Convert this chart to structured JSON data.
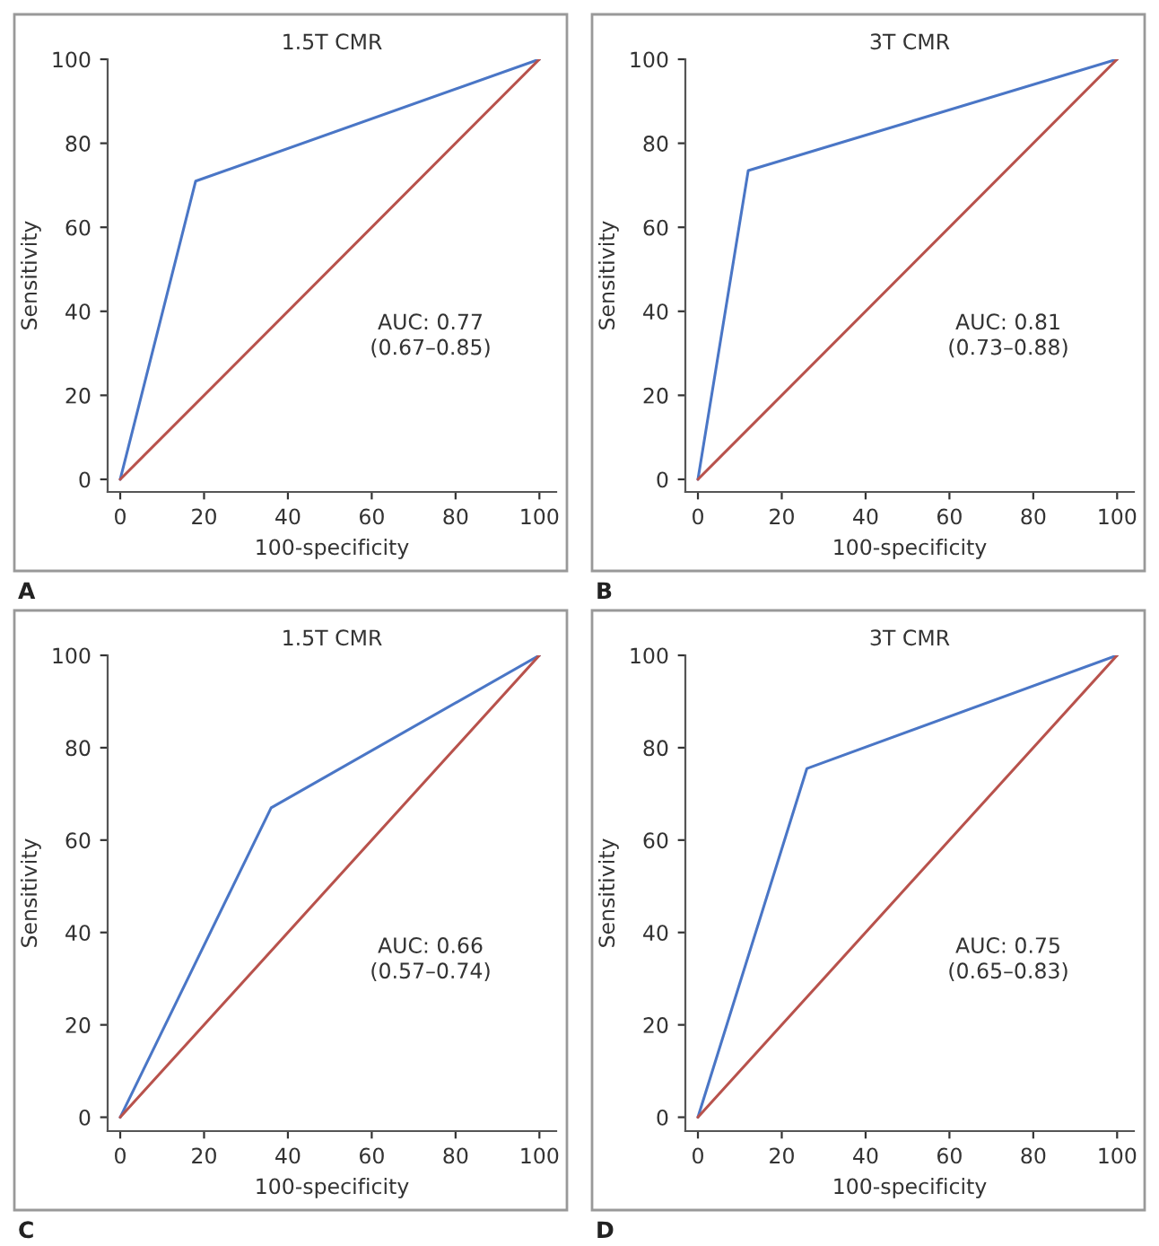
{
  "chart_data": [
    {
      "type": "line",
      "title": "1.5T CMR",
      "xlabel": "100-specificity",
      "ylabel": "Sensitivity",
      "xlim": [
        -3,
        104
      ],
      "ylim": [
        -3,
        100
      ],
      "xticks": [
        0,
        20,
        40,
        60,
        80,
        100
      ],
      "yticks": [
        0,
        20,
        40,
        60,
        80,
        100
      ],
      "annotations": [
        "AUC: 0.77\n(0.67–0.85)",
        "A"
      ],
      "series": [
        {
          "color": "#4a76c6",
          "x": [
            0,
            18,
            100
          ],
          "values": [
            0,
            71,
            100
          ]
        },
        {
          "color": "#b8524c",
          "x": [
            0,
            100
          ],
          "values": [
            0,
            100
          ]
        }
      ]
    },
    {
      "type": "line",
      "title": "3T CMR",
      "xlabel": "100-specificity",
      "ylabel": "Sensitivity",
      "xlim": [
        -3,
        104
      ],
      "ylim": [
        -3,
        100
      ],
      "xticks": [
        0,
        20,
        40,
        60,
        80,
        100
      ],
      "yticks": [
        0,
        20,
        40,
        60,
        80,
        100
      ],
      "annotations": [
        "AUC: 0.81\n(0.73–0.88)",
        "B"
      ],
      "series": [
        {
          "color": "#4a76c6",
          "x": [
            0,
            12,
            100
          ],
          "values": [
            0,
            73.5,
            100
          ]
        },
        {
          "color": "#b8524c",
          "x": [
            0,
            100
          ],
          "values": [
            0,
            100
          ]
        }
      ]
    },
    {
      "type": "line",
      "title": "1.5T CMR",
      "xlabel": "100-specificity",
      "ylabel": "Sensitivity",
      "xlim": [
        -3,
        104
      ],
      "ylim": [
        -3,
        100
      ],
      "xticks": [
        0,
        20,
        40,
        60,
        80,
        100
      ],
      "yticks": [
        0,
        20,
        40,
        60,
        80,
        100
      ],
      "annotations": [
        "AUC: 0.66\n(0.57–0.74)",
        "C"
      ],
      "series": [
        {
          "color": "#4a76c6",
          "x": [
            0,
            36,
            100
          ],
          "values": [
            0,
            67,
            100
          ]
        },
        {
          "color": "#b8524c",
          "x": [
            0,
            100
          ],
          "values": [
            0,
            100
          ]
        }
      ]
    },
    {
      "type": "line",
      "title": "3T CMR",
      "xlabel": "100-specificity",
      "ylabel": "Sensitivity",
      "xlim": [
        -3,
        104
      ],
      "ylim": [
        -3,
        100
      ],
      "xticks": [
        0,
        20,
        40,
        60,
        80,
        100
      ],
      "yticks": [
        0,
        20,
        40,
        60,
        80,
        100
      ],
      "annotations": [
        "AUC: 0.75\n(0.65–0.83)",
        "D"
      ],
      "series": [
        {
          "color": "#4a76c6",
          "x": [
            0,
            26,
            100
          ],
          "values": [
            0,
            75.5,
            100
          ]
        },
        {
          "color": "#b8524c",
          "x": [
            0,
            100
          ],
          "values": [
            0,
            100
          ]
        }
      ]
    }
  ]
}
